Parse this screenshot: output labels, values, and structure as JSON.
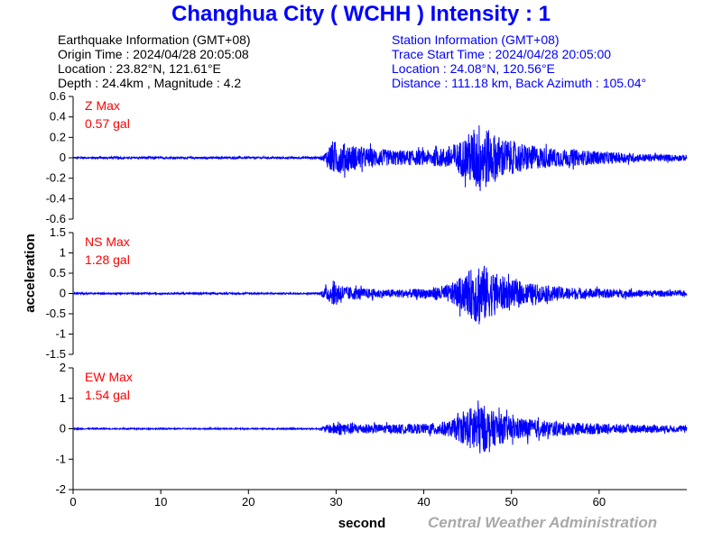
{
  "header": {
    "title": "Changhua City ( WCHH ) Intensity : 1"
  },
  "earthquake_info": {
    "heading": "Earthquake Information  (GMT+08)",
    "origin_time": "Origin Time : 2024/04/28 20:05:08",
    "location": "Location : 23.82°N, 121.61°E",
    "depth_magnitude": "Depth : 24.4km , Magnitude : 4.2"
  },
  "station_info": {
    "heading": "Station Information  (GMT+08)",
    "trace_start": "Trace Start Time : 2024/04/28 20:05:00",
    "location": "Location : 24.08°N, 120.56°E",
    "distance": "Distance : 111.18 km, Back Azimuth : 105.04°"
  },
  "watermark": "Central Weather Administration",
  "chart_data": {
    "type": "line",
    "xlabel": "second",
    "ylabel": "acceleration",
    "x_ticks": [
      "0",
      "10",
      "20",
      "30",
      "40",
      "50",
      "60"
    ],
    "xlim": [
      0,
      70
    ],
    "line_color": "#0000ff",
    "label_color": "#ff0000",
    "panels": [
      {
        "name": "Z",
        "label": "Z Max",
        "max_text": "0.57 gal",
        "max_value": 0.57,
        "ylim": [
          -0.6,
          0.6
        ],
        "y_ticks": [
          "0.6",
          "0.4",
          "0.2",
          "0",
          "-0.2",
          "-0.4",
          "-0.6"
        ],
        "envelope": [
          [
            0,
            0.015
          ],
          [
            28,
            0.015
          ],
          [
            28.6,
            0.05
          ],
          [
            29.5,
            0.26
          ],
          [
            31,
            0.22
          ],
          [
            33,
            0.16
          ],
          [
            36,
            0.12
          ],
          [
            40,
            0.11
          ],
          [
            42,
            0.14
          ],
          [
            44,
            0.24
          ],
          [
            45.5,
            0.42
          ],
          [
            46.5,
            0.57
          ],
          [
            47.5,
            0.4
          ],
          [
            50,
            0.25
          ],
          [
            53,
            0.17
          ],
          [
            56,
            0.13
          ],
          [
            60,
            0.1
          ],
          [
            65,
            0.06
          ],
          [
            70,
            0.045
          ]
        ]
      },
      {
        "name": "NS",
        "label": "NS Max",
        "max_text": "1.28 gal",
        "max_value": 1.28,
        "ylim": [
          -1.5,
          1.5
        ],
        "y_ticks": [
          "1.5",
          "1",
          "0.5",
          "0",
          "-0.5",
          "-1",
          "-1.5"
        ],
        "envelope": [
          [
            0,
            0.03
          ],
          [
            28,
            0.03
          ],
          [
            29,
            0.3
          ],
          [
            30,
            0.5
          ],
          [
            31,
            0.28
          ],
          [
            33,
            0.2
          ],
          [
            36,
            0.15
          ],
          [
            40,
            0.18
          ],
          [
            43,
            0.35
          ],
          [
            45,
            0.8
          ],
          [
            46.3,
            1.28
          ],
          [
            47.5,
            0.9
          ],
          [
            50,
            0.5
          ],
          [
            54,
            0.3
          ],
          [
            58,
            0.2
          ],
          [
            63,
            0.15
          ],
          [
            70,
            0.1
          ]
        ]
      },
      {
        "name": "EW",
        "label": "EW Max",
        "max_text": "1.54 gal",
        "max_value": 1.54,
        "ylim": [
          -2,
          2
        ],
        "y_ticks": [
          "2",
          "1",
          "0",
          "-1",
          "-2"
        ],
        "envelope": [
          [
            0,
            0.03
          ],
          [
            28,
            0.03
          ],
          [
            29,
            0.2
          ],
          [
            30,
            0.35
          ],
          [
            33,
            0.25
          ],
          [
            36,
            0.22
          ],
          [
            40,
            0.25
          ],
          [
            43,
            0.4
          ],
          [
            45,
            0.9
          ],
          [
            46,
            1.54
          ],
          [
            47.5,
            0.95
          ],
          [
            50,
            0.6
          ],
          [
            54,
            0.4
          ],
          [
            58,
            0.3
          ],
          [
            63,
            0.22
          ],
          [
            70,
            0.16
          ]
        ]
      }
    ]
  }
}
